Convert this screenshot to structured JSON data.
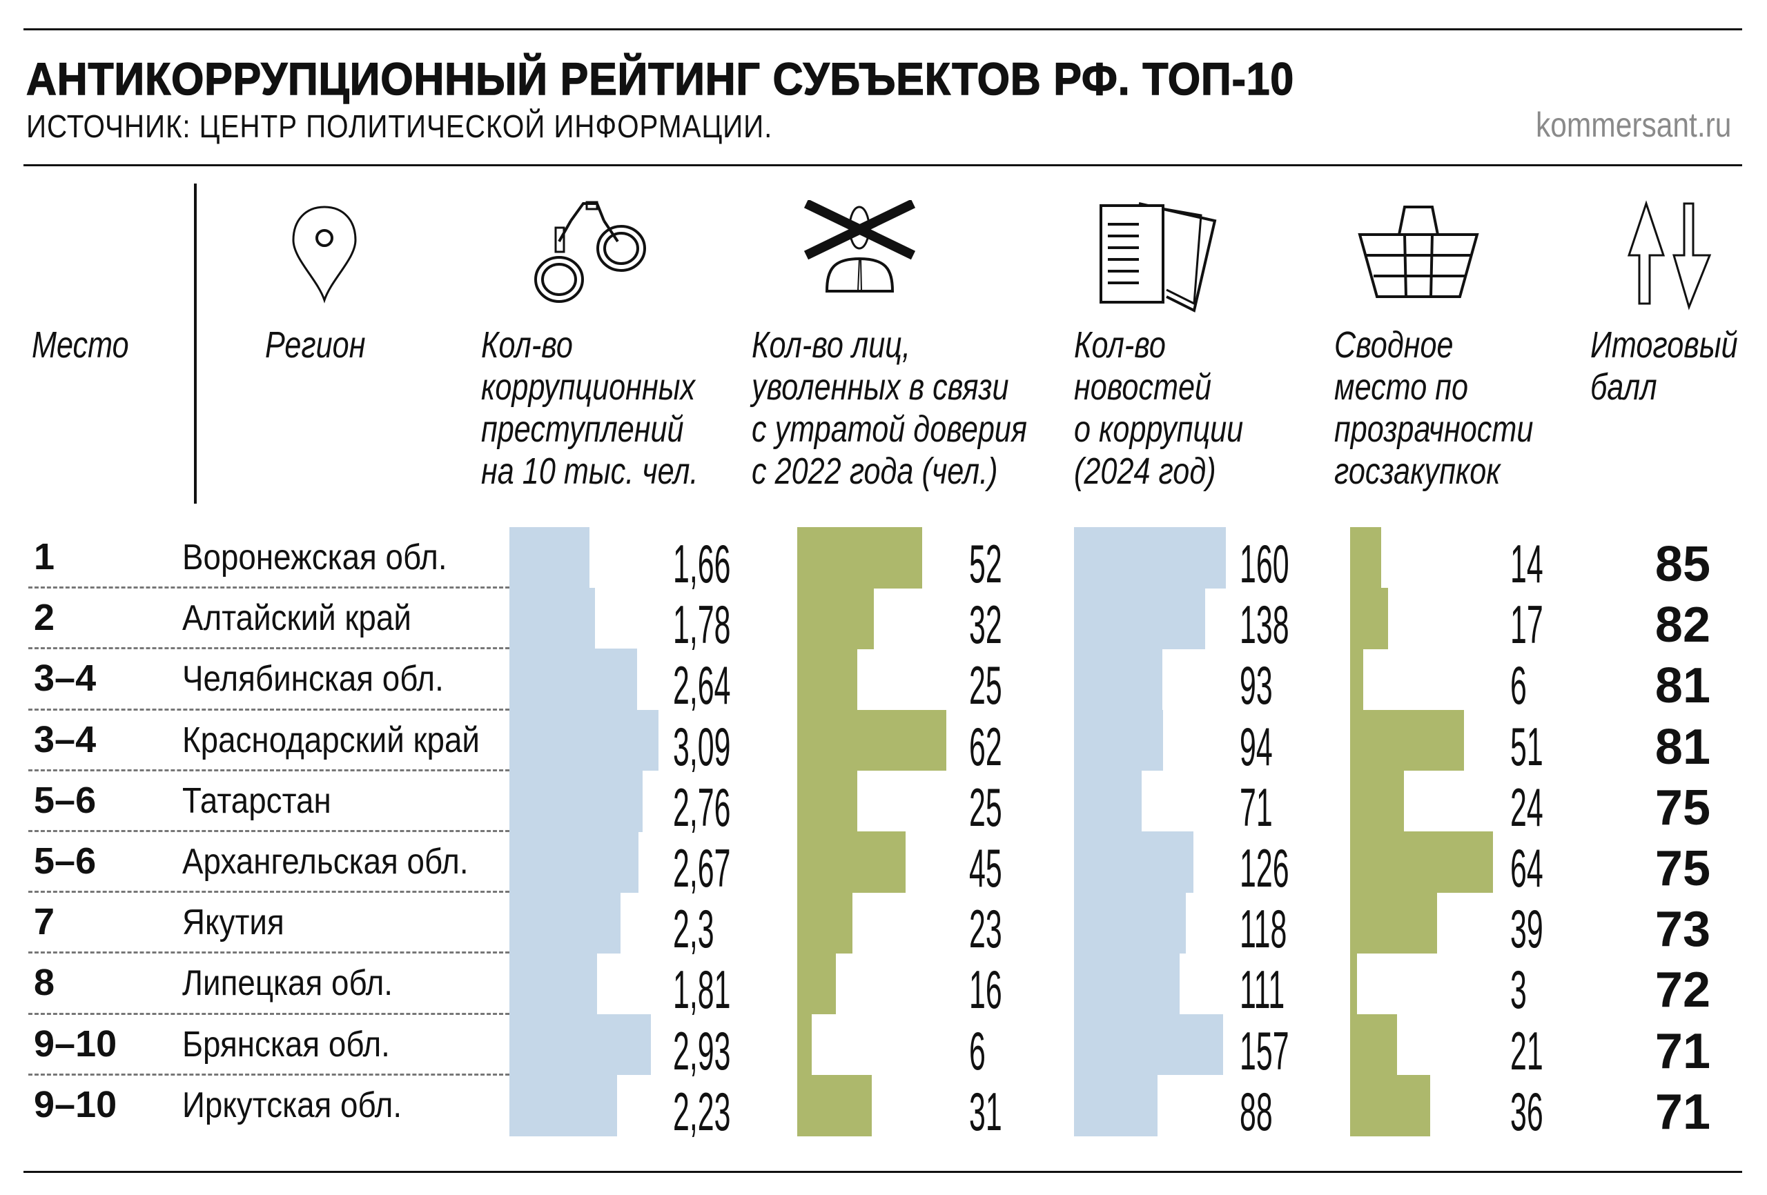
{
  "header": {
    "title": "АНТИКОРРУПЦИОННЫЙ РЕЙТИНГ СУБЪЕКТОВ РФ. ТОП-10",
    "subtitle": "ИСТОЧНИК: ЦЕНТР ПОЛИТИЧЕСКОЙ ИНФОРМАЦИИ.",
    "brand": "kommersant.ru"
  },
  "colors": {
    "blue_bars": "#c5d7e8",
    "green_bars": "#adb86c",
    "text": "#111111"
  },
  "columns": [
    {
      "key": "rank",
      "icon": "",
      "lines": [
        "Место"
      ]
    },
    {
      "key": "region",
      "icon": "map-pin-icon",
      "lines": [
        "Регион"
      ]
    },
    {
      "key": "crimes",
      "icon": "handcuffs-icon",
      "lines": [
        "Кол-во",
        "коррупционных",
        "преступлений",
        "на 10 тыс. чел."
      ]
    },
    {
      "key": "dismissed",
      "icon": "crossed-person-icon",
      "lines": [
        "Кол-во лиц,",
        "уволенных в связи",
        "с утратой доверия",
        "с 2022 года (чел.)"
      ]
    },
    {
      "key": "news",
      "icon": "documents-icon",
      "lines": [
        "Кол-во",
        "новостей",
        "о коррупции",
        "(2024 год)"
      ]
    },
    {
      "key": "procurement",
      "icon": "basket-icon",
      "lines": [
        "Сводное",
        "место по",
        "прозрачности",
        "госзакупкок"
      ]
    },
    {
      "key": "score",
      "icon": "up-down-arrows-icon",
      "lines": [
        "Итоговый",
        "балл"
      ]
    }
  ],
  "chart_data": {
    "type": "table",
    "title": "АНТИКОРРУПЦИОННЫЙ РЕЙТИНГ СУБЪЕКТОВ РФ. ТОП-10",
    "rows": [
      {
        "rank": "1",
        "region": "Воронежская обл.",
        "crimes": "1,66",
        "dismissed": "52",
        "news": "160",
        "procurement": "14",
        "score": "85"
      },
      {
        "rank": "2",
        "region": "Алтайский край",
        "crimes": "1,78",
        "dismissed": "32",
        "news": "138",
        "procurement": "17",
        "score": "82"
      },
      {
        "rank": "3–4",
        "region": "Челябинская обл.",
        "crimes": "2,64",
        "dismissed": "25",
        "news": "93",
        "procurement": "6",
        "score": "81"
      },
      {
        "rank": "3–4",
        "region": "Краснодарский край",
        "crimes": "3,09",
        "dismissed": "62",
        "news": "94",
        "procurement": "51",
        "score": "81"
      },
      {
        "rank": "5–6",
        "region": "Татарстан",
        "crimes": "2,76",
        "dismissed": "25",
        "news": "71",
        "procurement": "24",
        "score": "75"
      },
      {
        "rank": "5–6",
        "region": "Архангельская обл.",
        "crimes": "2,67",
        "dismissed": "45",
        "news": "126",
        "procurement": "64",
        "score": "75"
      },
      {
        "rank": "7",
        "region": "Якутия",
        "crimes": "2,3",
        "dismissed": "23",
        "news": "118",
        "procurement": "39",
        "score": "73"
      },
      {
        "rank": "8",
        "region": "Липецкая обл.",
        "crimes": "1,81",
        "dismissed": "16",
        "news": "111",
        "procurement": "3",
        "score": "72"
      },
      {
        "rank": "9–10",
        "region": "Брянская обл.",
        "crimes": "2,93",
        "dismissed": "6",
        "news": "157",
        "procurement": "21",
        "score": "71"
      },
      {
        "rank": "9–10",
        "region": "Иркутская обл.",
        "crimes": "2,23",
        "dismissed": "31",
        "news": "88",
        "procurement": "36",
        "score": "71"
      }
    ]
  }
}
